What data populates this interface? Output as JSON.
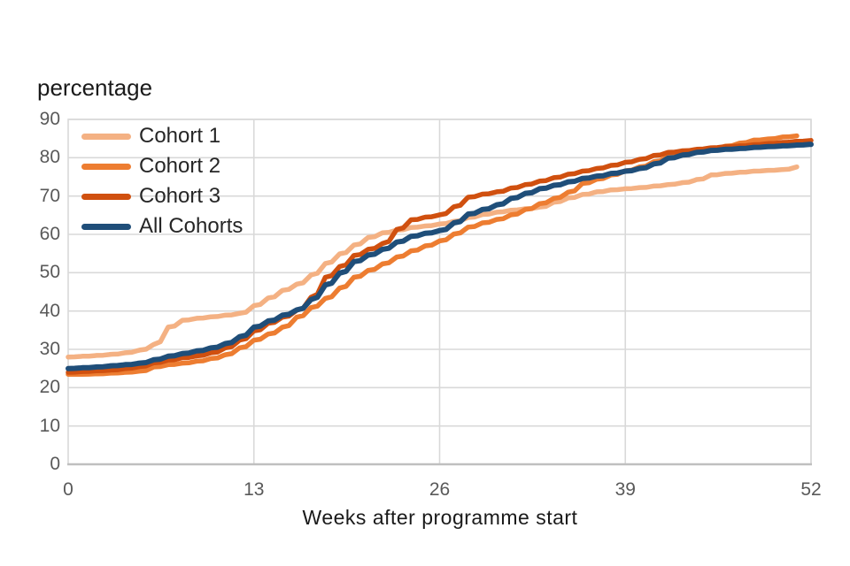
{
  "chart_data": {
    "type": "line",
    "title": "percentage",
    "xlabel": "Weeks after programme start",
    "ylabel": "percentage",
    "xlim": [
      0,
      52
    ],
    "ylim": [
      0,
      90
    ],
    "x_ticks": [
      0,
      13,
      26,
      39,
      52
    ],
    "y_ticks": [
      0,
      10,
      20,
      30,
      40,
      50,
      60,
      70,
      80,
      90
    ],
    "grid": true,
    "grid_color": "#d9d9d9",
    "axis_line_color": "#bfbfbf",
    "tick_label_color": "#595959",
    "legend_position": "top-left-inside",
    "x_unit": "weeks",
    "series": [
      {
        "name": "Cohort 1",
        "color": "#F4B183",
        "x_start": 0,
        "x_step": 1,
        "values": [
          28.0,
          28.2,
          28.4,
          28.7,
          29.1,
          29.8,
          31.3,
          35.8,
          37.6,
          38.1,
          38.5,
          38.9,
          39.4,
          41.4,
          43.4,
          45.4,
          47.0,
          49.4,
          52.4,
          54.9,
          57.2,
          59.2,
          60.4,
          61.1,
          61.8,
          62.2,
          62.7,
          63.4,
          64.4,
          65.2,
          65.8,
          66.3,
          66.7,
          67.1,
          68.4,
          69.5,
          70.4,
          71.1,
          71.6,
          71.9,
          72.2,
          72.6,
          73.0,
          73.5,
          74.3,
          75.5,
          75.9,
          76.2,
          76.5,
          76.7,
          76.9,
          77.6
        ]
      },
      {
        "name": "Cohort 2",
        "color": "#ED7D31",
        "x_start": 0,
        "x_step": 1,
        "values": [
          23.5,
          23.5,
          23.6,
          23.8,
          24.0,
          24.3,
          25.4,
          26.0,
          26.4,
          26.9,
          27.6,
          28.6,
          30.4,
          32.4,
          34.0,
          35.8,
          38.4,
          40.9,
          43.3,
          46.0,
          48.8,
          50.6,
          52.3,
          54.1,
          55.7,
          57.0,
          58.3,
          60.1,
          61.9,
          63.0,
          63.9,
          65.1,
          66.5,
          68.0,
          69.4,
          71.0,
          73.3,
          74.4,
          75.5,
          76.6,
          77.6,
          79.0,
          80.3,
          81.0,
          81.7,
          82.3,
          83.0,
          83.8,
          84.6,
          84.9,
          85.4,
          85.7
        ]
      },
      {
        "name": "Cohort 3",
        "color": "#D0500F",
        "x_start": 0,
        "x_step": 1,
        "values": [
          24.0,
          24.2,
          24.4,
          24.6,
          25.0,
          25.5,
          26.5,
          27.2,
          27.8,
          28.3,
          29.1,
          30.4,
          32.4,
          34.8,
          36.8,
          38.4,
          40.2,
          43.6,
          48.8,
          51.6,
          54.5,
          56.1,
          57.6,
          61.3,
          63.8,
          64.5,
          65.1,
          67.2,
          69.7,
          70.5,
          71.1,
          72.1,
          73.0,
          73.9,
          74.8,
          75.7,
          76.5,
          77.2,
          78.0,
          78.8,
          79.6,
          80.6,
          81.4,
          81.8,
          82.2,
          82.6,
          82.9,
          83.1,
          83.4,
          83.7,
          84.0,
          84.3,
          84.5
        ]
      },
      {
        "name": "All Cohorts",
        "color": "#1F4E79",
        "x_start": 0,
        "x_step": 1,
        "values": [
          25.0,
          25.2,
          25.4,
          25.7,
          26.0,
          26.4,
          27.3,
          28.2,
          28.9,
          29.6,
          30.4,
          31.5,
          33.3,
          35.8,
          37.4,
          38.9,
          40.3,
          43.0,
          46.8,
          49.9,
          52.9,
          54.6,
          56.1,
          58.0,
          59.5,
          60.3,
          61.0,
          63.0,
          65.3,
          66.5,
          67.7,
          69.4,
          70.7,
          71.9,
          72.8,
          73.7,
          74.6,
          75.2,
          75.9,
          76.5,
          77.2,
          78.4,
          79.9,
          80.7,
          81.4,
          81.9,
          82.2,
          82.4,
          82.7,
          82.9,
          83.1,
          83.3,
          83.5
        ]
      }
    ]
  }
}
